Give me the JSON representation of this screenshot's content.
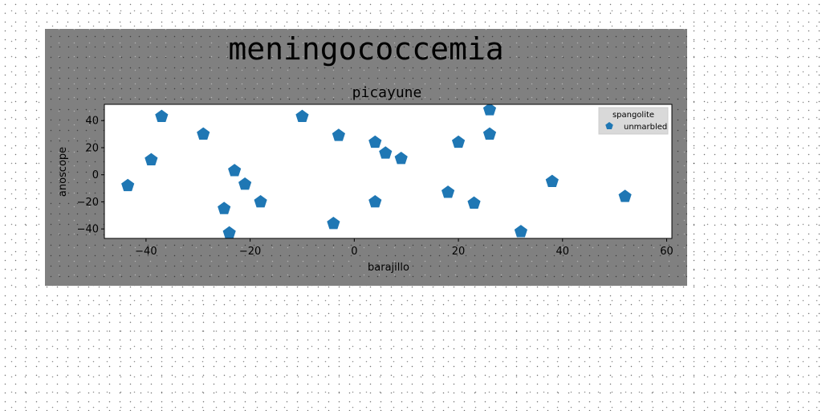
{
  "figure": {
    "suptitle": "meningococcemia"
  },
  "chart_data": {
    "type": "scatter",
    "title": "picayune",
    "xlabel": "barajillo",
    "ylabel": "anoscope",
    "xlim": [
      -48,
      61
    ],
    "ylim": [
      -47,
      52
    ],
    "xticks": [
      -40,
      -20,
      0,
      20,
      40,
      60
    ],
    "yticks": [
      -40,
      -20,
      0,
      20,
      40
    ],
    "xtick_labels": [
      "−40",
      "−20",
      "0",
      "20",
      "40",
      "60"
    ],
    "ytick_labels": [
      "−40",
      "−20",
      "0",
      "20",
      "40"
    ],
    "grid": false,
    "legend": {
      "title": "spangolite",
      "position": "top-right"
    },
    "series": [
      {
        "name": "unmarbled",
        "marker": "pentagon",
        "color": "#1f77b4",
        "points": [
          [
            -43.5,
            -8
          ],
          [
            -39,
            11
          ],
          [
            -37,
            43
          ],
          [
            -29,
            30
          ],
          [
            -25,
            -25
          ],
          [
            -24,
            -43
          ],
          [
            -23,
            3
          ],
          [
            -21,
            -7
          ],
          [
            -18,
            -20
          ],
          [
            -10,
            43
          ],
          [
            -4,
            -36
          ],
          [
            -3,
            29
          ],
          [
            4,
            24
          ],
          [
            4,
            -20
          ],
          [
            6,
            16
          ],
          [
            9,
            12
          ],
          [
            18,
            -13
          ],
          [
            20,
            24
          ],
          [
            23,
            -21
          ],
          [
            26,
            48
          ],
          [
            26,
            30
          ],
          [
            32,
            -42
          ],
          [
            38,
            -5
          ],
          [
            52,
            -16
          ],
          [
            56,
            44
          ]
        ]
      }
    ]
  }
}
